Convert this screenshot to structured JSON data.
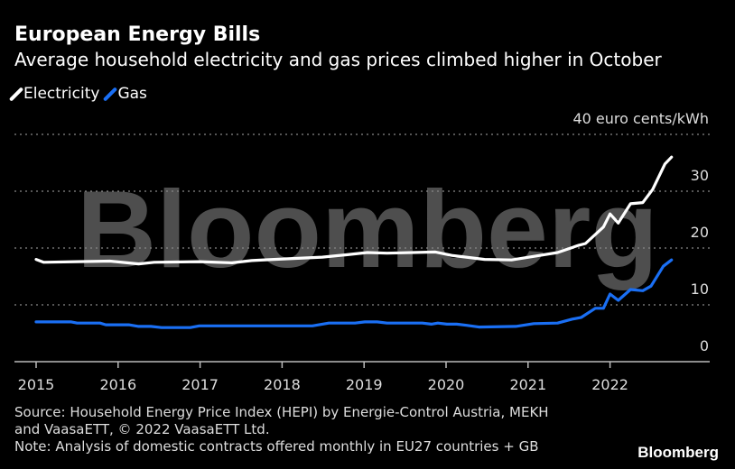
{
  "header": {
    "title": "European Energy Bills",
    "subtitle": "Average household electricity and gas prices climbed higher in October"
  },
  "footer": {
    "source_line1": "Source: Household Energy Price Index (HEPI) by Energie-Control Austria, MEKH",
    "source_line2": "and VaasaETT, © 2022 VaasaETT Ltd.",
    "note": "Note: Analysis of domestic contracts offered monthly in EU27 countries + GB",
    "logo": "Bloomberg"
  },
  "watermark": "Bloomberg",
  "chart_data": {
    "type": "line",
    "title": "European Energy Bills",
    "ylabel": "euro cents/kWh",
    "y_unit_label": "40 euro cents/kWh",
    "ylim": [
      0,
      40
    ],
    "yticks": [
      0,
      10,
      20,
      30,
      40
    ],
    "ytick_labels": [
      "0",
      "10",
      "20",
      "30"
    ],
    "xlim": [
      2015,
      2022.9
    ],
    "xticks": [
      2015,
      2016,
      2017,
      2018,
      2019,
      2020,
      2021,
      2022
    ],
    "xtick_labels": [
      "2015",
      "2016",
      "2017",
      "2018",
      "2019",
      "2020",
      "2021",
      "2022"
    ],
    "grid": true,
    "legend_position": "top-left",
    "series": [
      {
        "name": "Electricity",
        "color": "#ffffff",
        "x": [
          2015.0,
          2015.09,
          2015.5,
          2015.9,
          2016.25,
          2016.44,
          2016.99,
          2017.39,
          2017.63,
          2017.9,
          2018.49,
          2018.77,
          2019.04,
          2019.28,
          2019.87,
          2020.07,
          2020.47,
          2020.8,
          2021.1,
          2021.36,
          2021.62,
          2021.7,
          2021.92,
          2022.0,
          2022.1,
          2022.25,
          2022.4,
          2022.52,
          2022.67,
          2022.75
        ],
        "values": [
          18.0,
          17.5,
          17.6,
          17.7,
          17.2,
          17.5,
          17.6,
          17.4,
          17.8,
          18.0,
          18.4,
          18.8,
          19.2,
          19.1,
          19.3,
          18.7,
          18.0,
          17.9,
          18.6,
          19.2,
          20.5,
          20.8,
          23.7,
          26.0,
          24.4,
          27.8,
          28.0,
          30.3,
          34.8,
          36.0
        ]
      },
      {
        "name": "Gas",
        "color": "#1a6ff4",
        "x": [
          2015.0,
          2015.43,
          2015.5,
          2015.78,
          2015.85,
          2016.13,
          2016.25,
          2016.4,
          2016.53,
          2016.88,
          2016.99,
          2018.37,
          2018.57,
          2018.89,
          2019.01,
          2019.16,
          2019.28,
          2019.71,
          2019.82,
          2019.9,
          2020.01,
          2020.13,
          2020.25,
          2020.4,
          2020.85,
          2021.07,
          2021.36,
          2021.54,
          2021.65,
          2021.82,
          2021.92,
          2022.0,
          2022.1,
          2022.25,
          2022.4,
          2022.5,
          2022.65,
          2022.75
        ],
        "values": [
          7.0,
          7.0,
          6.8,
          6.8,
          6.5,
          6.5,
          6.2,
          6.2,
          6.0,
          6.0,
          6.3,
          6.3,
          6.8,
          6.8,
          7.0,
          7.0,
          6.8,
          6.8,
          6.6,
          6.8,
          6.6,
          6.6,
          6.4,
          6.1,
          6.2,
          6.7,
          6.8,
          7.5,
          7.8,
          9.4,
          9.4,
          11.9,
          10.8,
          12.7,
          12.5,
          13.3,
          16.8,
          17.9
        ]
      }
    ]
  }
}
